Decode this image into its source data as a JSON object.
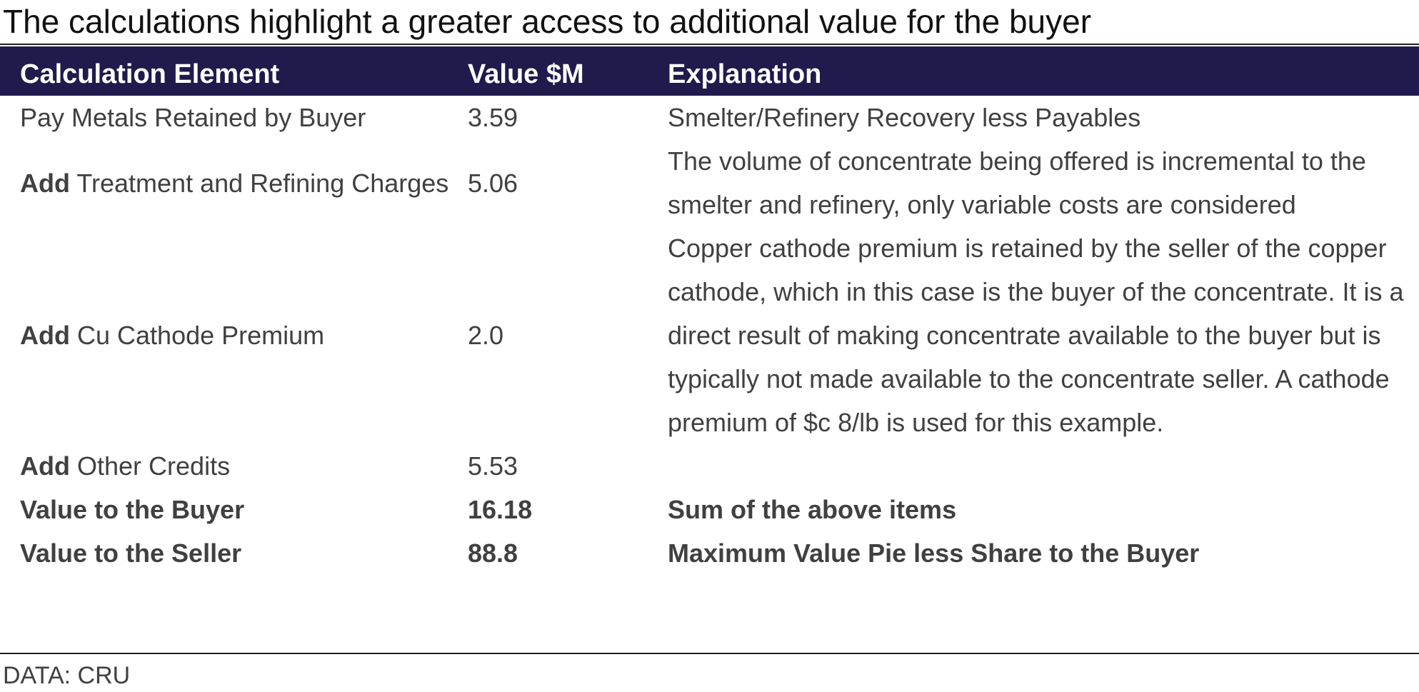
{
  "title": "The calculations highlight a greater access to additional value for the buyer",
  "table": {
    "headers": [
      "Calculation Element",
      "Value $M",
      "Explanation"
    ],
    "rows": [
      {
        "prefix": "",
        "label": "Pay Metals Retained by Buyer",
        "value": "3.59",
        "explanation": "Smelter/Refinery Recovery less Payables"
      },
      {
        "prefix": "Add",
        "label": "Treatment and Refining Charges",
        "value": "5.06",
        "explanation": "The volume of concentrate being offered is incremental to the smelter and refinery, only variable costs are considered"
      },
      {
        "prefix": "Add",
        "label": "Cu Cathode Premium",
        "value": "2.0",
        "explanation": "Copper cathode premium is retained by the seller of the copper cathode, which in this case is the buyer of the concentrate. It is a direct result of making concentrate available to the buyer but is typically not made available to the concentrate seller. A cathode premium of $c 8/lb is used for this example."
      },
      {
        "prefix": "Add",
        "label": "Other Credits",
        "value": "5.53",
        "explanation": ""
      },
      {
        "prefix": "",
        "label": "Value to the Buyer",
        "value": "16.18",
        "explanation": "Sum of the above items"
      },
      {
        "prefix": "",
        "label": "Value to the Seller",
        "value": "88.8",
        "explanation": "Maximum Value Pie less Share to the Buyer"
      }
    ]
  },
  "source": "DATA: CRU",
  "colors": {
    "header_bg": "#211a4c",
    "header_text": "#ffffff",
    "body_text": "#404040"
  }
}
